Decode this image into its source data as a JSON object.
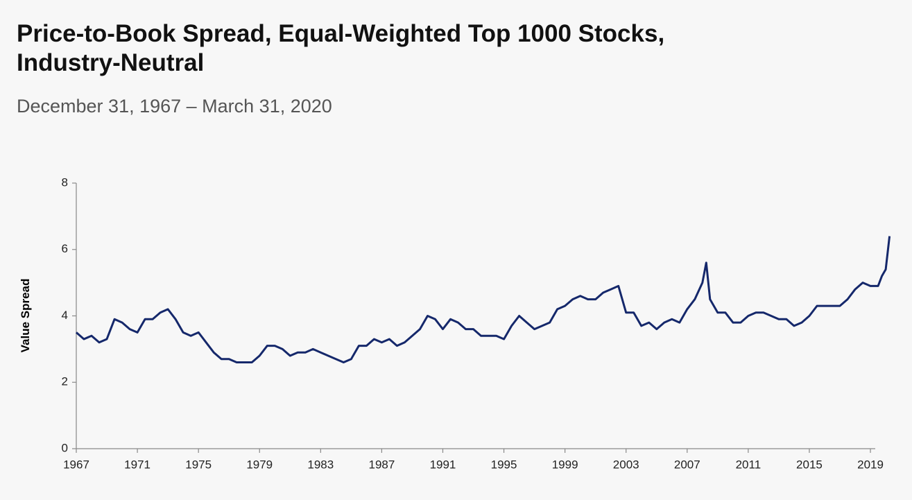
{
  "chart_data": {
    "type": "line",
    "title": "Price-to-Book Spread, Equal-Weighted Top 1000 Stocks, Industry-Neutral",
    "subtitle": "December 31, 1967 – March 31, 2020",
    "ylabel": "Value Spread",
    "x": [
      1967.0,
      1967.5,
      1968.0,
      1968.5,
      1969.0,
      1969.5,
      1970.0,
      1970.5,
      1971.0,
      1971.5,
      1972.0,
      1972.5,
      1973.0,
      1973.5,
      1974.0,
      1974.5,
      1975.0,
      1975.5,
      1976.0,
      1976.5,
      1977.0,
      1977.5,
      1978.0,
      1978.5,
      1979.0,
      1979.5,
      1980.0,
      1980.5,
      1981.0,
      1981.5,
      1982.0,
      1982.5,
      1983.0,
      1983.5,
      1984.0,
      1984.5,
      1985.0,
      1985.5,
      1986.0,
      1986.5,
      1987.0,
      1987.5,
      1988.0,
      1988.5,
      1989.0,
      1989.5,
      1990.0,
      1990.5,
      1991.0,
      1991.5,
      1992.0,
      1992.5,
      1993.0,
      1993.5,
      1994.0,
      1994.5,
      1995.0,
      1995.5,
      1996.0,
      1996.5,
      1997.0,
      1997.5,
      1998.0,
      1998.5,
      1999.0,
      1999.5,
      2000.0,
      2000.5,
      2001.0,
      2001.5,
      2002.0,
      2002.5,
      2003.0,
      2003.5,
      2004.0,
      2004.5,
      2005.0,
      2005.5,
      2006.0,
      2006.5,
      2007.0,
      2007.5,
      2008.0,
      2008.25,
      2008.5,
      2009.0,
      2009.5,
      2010.0,
      2010.5,
      2011.0,
      2011.5,
      2012.0,
      2012.5,
      2013.0,
      2013.5,
      2014.0,
      2014.5,
      2015.0,
      2015.5,
      2016.0,
      2016.5,
      2017.0,
      2017.5,
      2018.0,
      2018.5,
      2019.0,
      2019.5,
      2019.75,
      2020.0,
      2020.25
    ],
    "series": [
      {
        "name": "Value Spread",
        "color": "#15286b",
        "values": [
          3.5,
          3.3,
          3.4,
          3.2,
          3.3,
          3.9,
          3.8,
          3.6,
          3.5,
          3.9,
          3.9,
          4.1,
          4.2,
          3.9,
          3.5,
          3.4,
          3.5,
          3.2,
          2.9,
          2.7,
          2.7,
          2.6,
          2.6,
          2.6,
          2.8,
          3.1,
          3.1,
          3.0,
          2.8,
          2.9,
          2.9,
          3.0,
          2.9,
          2.8,
          2.7,
          2.6,
          2.7,
          3.1,
          3.1,
          3.3,
          3.2,
          3.3,
          3.1,
          3.2,
          3.4,
          3.6,
          4.0,
          3.9,
          3.6,
          3.9,
          3.8,
          3.6,
          3.6,
          3.4,
          3.4,
          3.4,
          3.3,
          3.7,
          4.0,
          3.8,
          3.6,
          3.7,
          3.8,
          4.2,
          4.3,
          4.5,
          4.6,
          4.5,
          4.5,
          4.7,
          4.8,
          4.9,
          4.1,
          4.1,
          3.7,
          3.8,
          3.6,
          3.8,
          3.9,
          3.8,
          4.2,
          4.5,
          5.0,
          5.6,
          4.5,
          4.1,
          4.1,
          3.8,
          3.8,
          4.0,
          4.1,
          4.1,
          4.0,
          3.9,
          3.9,
          3.7,
          3.8,
          4.0,
          4.3,
          4.3,
          4.3,
          4.3,
          4.5,
          4.8,
          5.0,
          4.9,
          4.9,
          5.2,
          5.4,
          6.4
        ]
      }
    ],
    "xlim": [
      1967,
      2020.25
    ],
    "xticks": [
      1967,
      1971,
      1975,
      1979,
      1983,
      1987,
      1991,
      1995,
      1999,
      2003,
      2007,
      2011,
      2015,
      2019
    ],
    "ylim": [
      0,
      8
    ],
    "yticks": [
      0,
      2,
      4,
      6,
      8
    ],
    "grid": false
  }
}
